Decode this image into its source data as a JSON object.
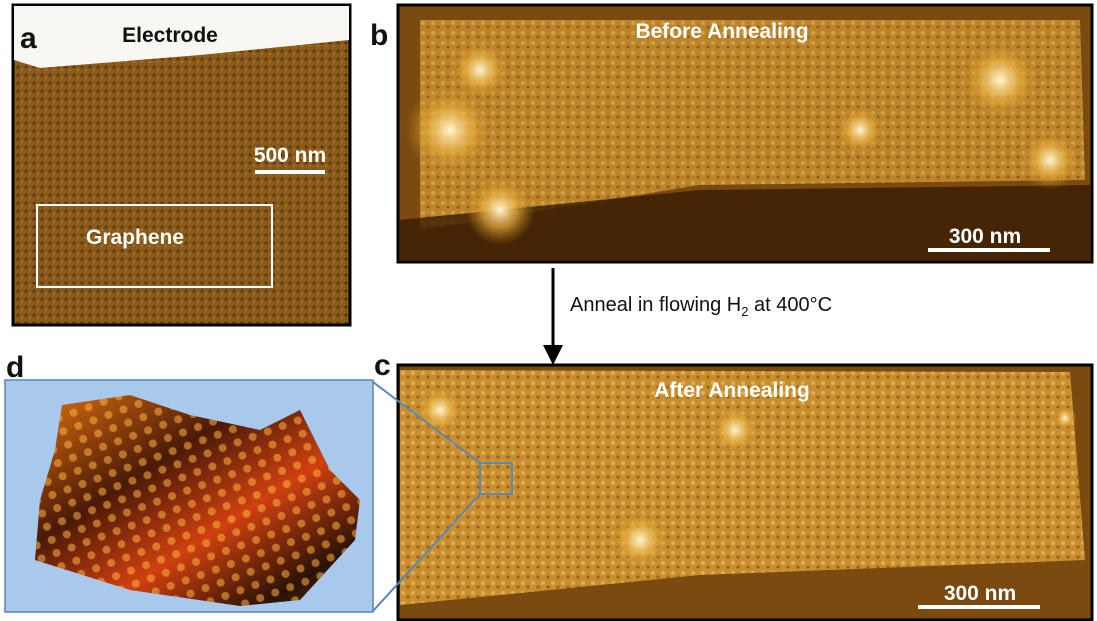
{
  "panels": [
    {
      "label": "a",
      "texts": [
        "Electrode",
        "Graphene"
      ],
      "scale_bar": "500 nm"
    },
    {
      "label": "b",
      "title": "Before Annealing",
      "scale_bar": "300 nm"
    },
    {
      "label": "c",
      "title": "After Annealing",
      "scale_bar": "300 nm"
    },
    {
      "label": "d"
    }
  ],
  "process": {
    "text": "Anneal in flowing H",
    "subscript": "2",
    "text_after": " at 400°C"
  }
}
